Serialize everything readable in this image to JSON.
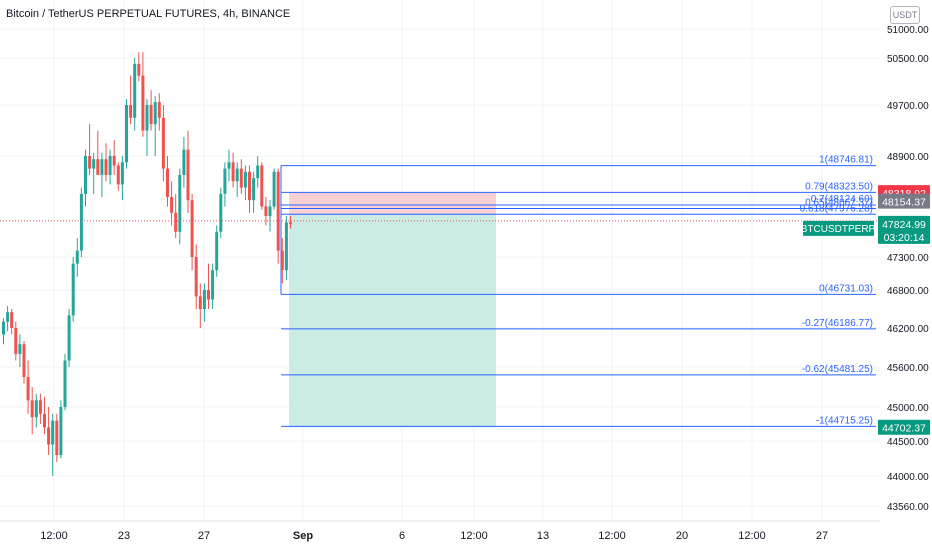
{
  "header": {
    "title": "Bitcoin / TetherUS PERPETUAL FUTURES, 4h, BINANCE"
  },
  "currency_button": "USDT",
  "chart_data": {
    "type": "candlestick",
    "symbol": "BTCUSDTPERP",
    "interval": "4h",
    "exchange": "BINANCE",
    "y_ticks": [
      51000.0,
      50500.0,
      49700.0,
      48900.0,
      47300.0,
      46800.0,
      46200.0,
      45600.0,
      45000.0,
      44500.0,
      44000.0,
      43560.0
    ],
    "y_range": [
      43560,
      51000
    ],
    "x_ticks": [
      "12:00",
      "23",
      "27",
      "Sep",
      "6",
      "12:00",
      "13",
      "12:00",
      "20",
      "12:00",
      "27"
    ],
    "current_price": {
      "value": "47824.99",
      "countdown": "03:20:14",
      "label": "BTCUSDTPERP",
      "color": "#089981"
    },
    "price_labels": [
      {
        "value": "48318.92",
        "color": "#f23645"
      },
      {
        "value": "48154.37",
        "color": "#787b86"
      },
      {
        "value": "44702.37",
        "color": "#089981"
      }
    ],
    "fib_levels": [
      {
        "label": "1(48746.81)",
        "price": 48746.81
      },
      {
        "label": "0.79(48323.50)",
        "price": 48323.5
      },
      {
        "label": "0.7(48124.60)",
        "price": 48124.6
      },
      {
        "label": "0.65(48067.37)",
        "price": 48067.37
      },
      {
        "label": "0.618(47976.28)",
        "price": 47976.28
      },
      {
        "label": "0(46731.03)",
        "price": 46731.03
      },
      {
        "label": "-0.27(46186.77)",
        "price": 46186.77
      },
      {
        "label": "-0.62(45481.25)",
        "price": 45481.25
      },
      {
        "label": "-1(44715.25)",
        "price": 44715.25
      }
    ],
    "position": {
      "entry": 47976.28,
      "stop": 48318.92,
      "target": 44702.37
    },
    "candles": [
      [
        46100,
        46350,
        45950,
        46300
      ],
      [
        46300,
        46550,
        46150,
        46450
      ],
      [
        46450,
        46500,
        46100,
        46200
      ],
      [
        46200,
        46300,
        45700,
        45800
      ],
      [
        45800,
        46100,
        45600,
        45950
      ],
      [
        45950,
        46000,
        45350,
        45450
      ],
      [
        45450,
        45700,
        44900,
        45100
      ],
      [
        45100,
        45300,
        44600,
        44850
      ],
      [
        44850,
        45200,
        44700,
        45100
      ],
      [
        45100,
        45200,
        44750,
        44900
      ],
      [
        44900,
        45150,
        44600,
        44700
      ],
      [
        44700,
        45000,
        44300,
        44450
      ],
      [
        44450,
        44900,
        44000,
        44800
      ],
      [
        44800,
        44900,
        44200,
        44300
      ],
      [
        44300,
        45100,
        44250,
        45000
      ],
      [
        45000,
        45800,
        44950,
        45700
      ],
      [
        45700,
        46500,
        45600,
        46400
      ],
      [
        46400,
        47300,
        46300,
        47200
      ],
      [
        47200,
        47600,
        47000,
        47400
      ],
      [
        47400,
        48400,
        47300,
        48300
      ],
      [
        48300,
        49000,
        48100,
        48900
      ],
      [
        48900,
        49400,
        48600,
        48700
      ],
      [
        48700,
        48950,
        48300,
        48850
      ],
      [
        48850,
        49300,
        48600,
        48600
      ],
      [
        48600,
        48950,
        48250,
        48850
      ],
      [
        48850,
        49100,
        48500,
        48600
      ],
      [
        48600,
        49000,
        48450,
        48900
      ],
      [
        48900,
        49150,
        48600,
        48750
      ],
      [
        48750,
        48800,
        48350,
        48450
      ],
      [
        48450,
        48900,
        48200,
        48800
      ],
      [
        48800,
        49800,
        48700,
        49700
      ],
      [
        49700,
        50200,
        49400,
        49500
      ],
      [
        49500,
        50500,
        49300,
        50400
      ],
      [
        50400,
        50600,
        50100,
        50200
      ],
      [
        50200,
        50600,
        49200,
        49300
      ],
      [
        49300,
        49800,
        48900,
        49700
      ],
      [
        49700,
        49950,
        49300,
        49400
      ],
      [
        49400,
        49850,
        48900,
        49750
      ],
      [
        49750,
        49900,
        49300,
        49500
      ],
      [
        49500,
        49700,
        48500,
        48700
      ],
      [
        48700,
        48900,
        48100,
        48250
      ],
      [
        48250,
        48500,
        47800,
        48000
      ],
      [
        48000,
        48300,
        47600,
        47700
      ],
      [
        47700,
        48700,
        47500,
        48600
      ],
      [
        48600,
        49200,
        48400,
        49000
      ],
      [
        49000,
        49300,
        48000,
        48200
      ],
      [
        48200,
        48300,
        47100,
        47300
      ],
      [
        47300,
        47500,
        46500,
        46700
      ],
      [
        46700,
        46900,
        46200,
        46500
      ],
      [
        46500,
        46900,
        46300,
        46800
      ],
      [
        46800,
        47200,
        46500,
        46650
      ],
      [
        46650,
        47200,
        46500,
        47100
      ],
      [
        47100,
        47800,
        47000,
        47700
      ],
      [
        47700,
        48400,
        47600,
        48300
      ],
      [
        48300,
        48800,
        48100,
        48700
      ],
      [
        48700,
        49000,
        48500,
        48800
      ],
      [
        48800,
        48950,
        48400,
        48500
      ],
      [
        48500,
        48800,
        48250,
        48700
      ],
      [
        48700,
        48850,
        48300,
        48400
      ],
      [
        48400,
        48750,
        48200,
        48650
      ],
      [
        48650,
        48750,
        48000,
        48200
      ],
      [
        48200,
        48650,
        48000,
        48550
      ],
      [
        48550,
        48900,
        48400,
        48750
      ],
      [
        48750,
        48800,
        48050,
        48100
      ],
      [
        48100,
        48250,
        47800,
        47950
      ],
      [
        47950,
        48200,
        47700,
        48100
      ],
      [
        48100,
        48700,
        48050,
        48650
      ],
      [
        48650,
        48700,
        47200,
        47400
      ],
      [
        47400,
        47600,
        46900,
        47100
      ],
      [
        47100,
        47950,
        46950,
        47850
      ],
      [
        47850,
        47950,
        47750,
        47825
      ]
    ]
  }
}
